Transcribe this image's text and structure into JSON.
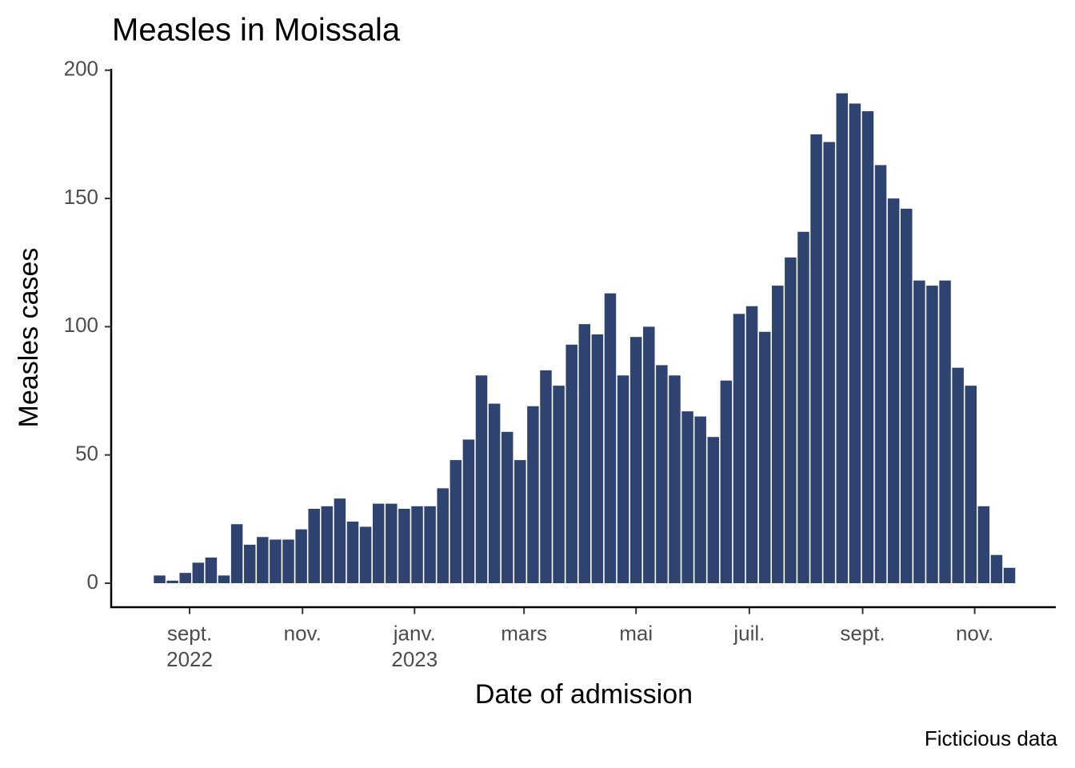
{
  "chart_data": {
    "type": "bar",
    "title": "Measles in Moissala",
    "x_label": "Date of admission",
    "y_label": "Measles cases",
    "caption": "Ficticious data",
    "color": "#2e4370",
    "categories": [
      null,
      null,
      null,
      null,
      null,
      null,
      null,
      null,
      null,
      null,
      null,
      null,
      null,
      null,
      null,
      null,
      null,
      null,
      null,
      null,
      null,
      null,
      null,
      null,
      null,
      null,
      null,
      null,
      null,
      null,
      null,
      null,
      null,
      null,
      null,
      null,
      null,
      null,
      null,
      null,
      null,
      null,
      null,
      null,
      null,
      null,
      null,
      null,
      null,
      null,
      null,
      null,
      null,
      null,
      null,
      null,
      null,
      null,
      null,
      null,
      null,
      null,
      null,
      null,
      null,
      null,
      null
    ],
    "values": [
      3,
      1,
      4,
      8,
      10,
      3,
      23,
      15,
      18,
      17,
      17,
      21,
      29,
      30,
      33,
      24,
      22,
      31,
      31,
      29,
      30,
      30,
      37,
      48,
      56,
      81,
      70,
      59,
      48,
      69,
      83,
      77,
      93,
      101,
      97,
      113,
      81,
      96,
      100,
      85,
      81,
      67,
      65,
      57,
      79,
      105,
      108,
      98,
      116,
      127,
      137,
      175,
      172,
      191,
      187,
      184,
      163,
      150,
      146,
      118,
      116,
      118,
      84,
      77,
      30,
      11,
      6
    ],
    "xlim": [
      -3.76,
      69.6
    ],
    "xticks": [
      {
        "value": 2.33,
        "label": "sept.\n2022"
      },
      {
        "value": 11.1,
        "label": "nov."
      },
      {
        "value": 19.8,
        "label": "janv.\n2023"
      },
      {
        "value": 28.3,
        "label": "mars"
      },
      {
        "value": 37.0,
        "label": "mai"
      },
      {
        "value": 45.8,
        "label": "juil."
      },
      {
        "value": 54.6,
        "label": "sept."
      },
      {
        "value": 63.3,
        "label": "nov."
      }
    ],
    "ylim": [
      -9.55,
      200.55
    ],
    "yticks": [
      0,
      50,
      100,
      150,
      200
    ],
    "grid": false
  }
}
